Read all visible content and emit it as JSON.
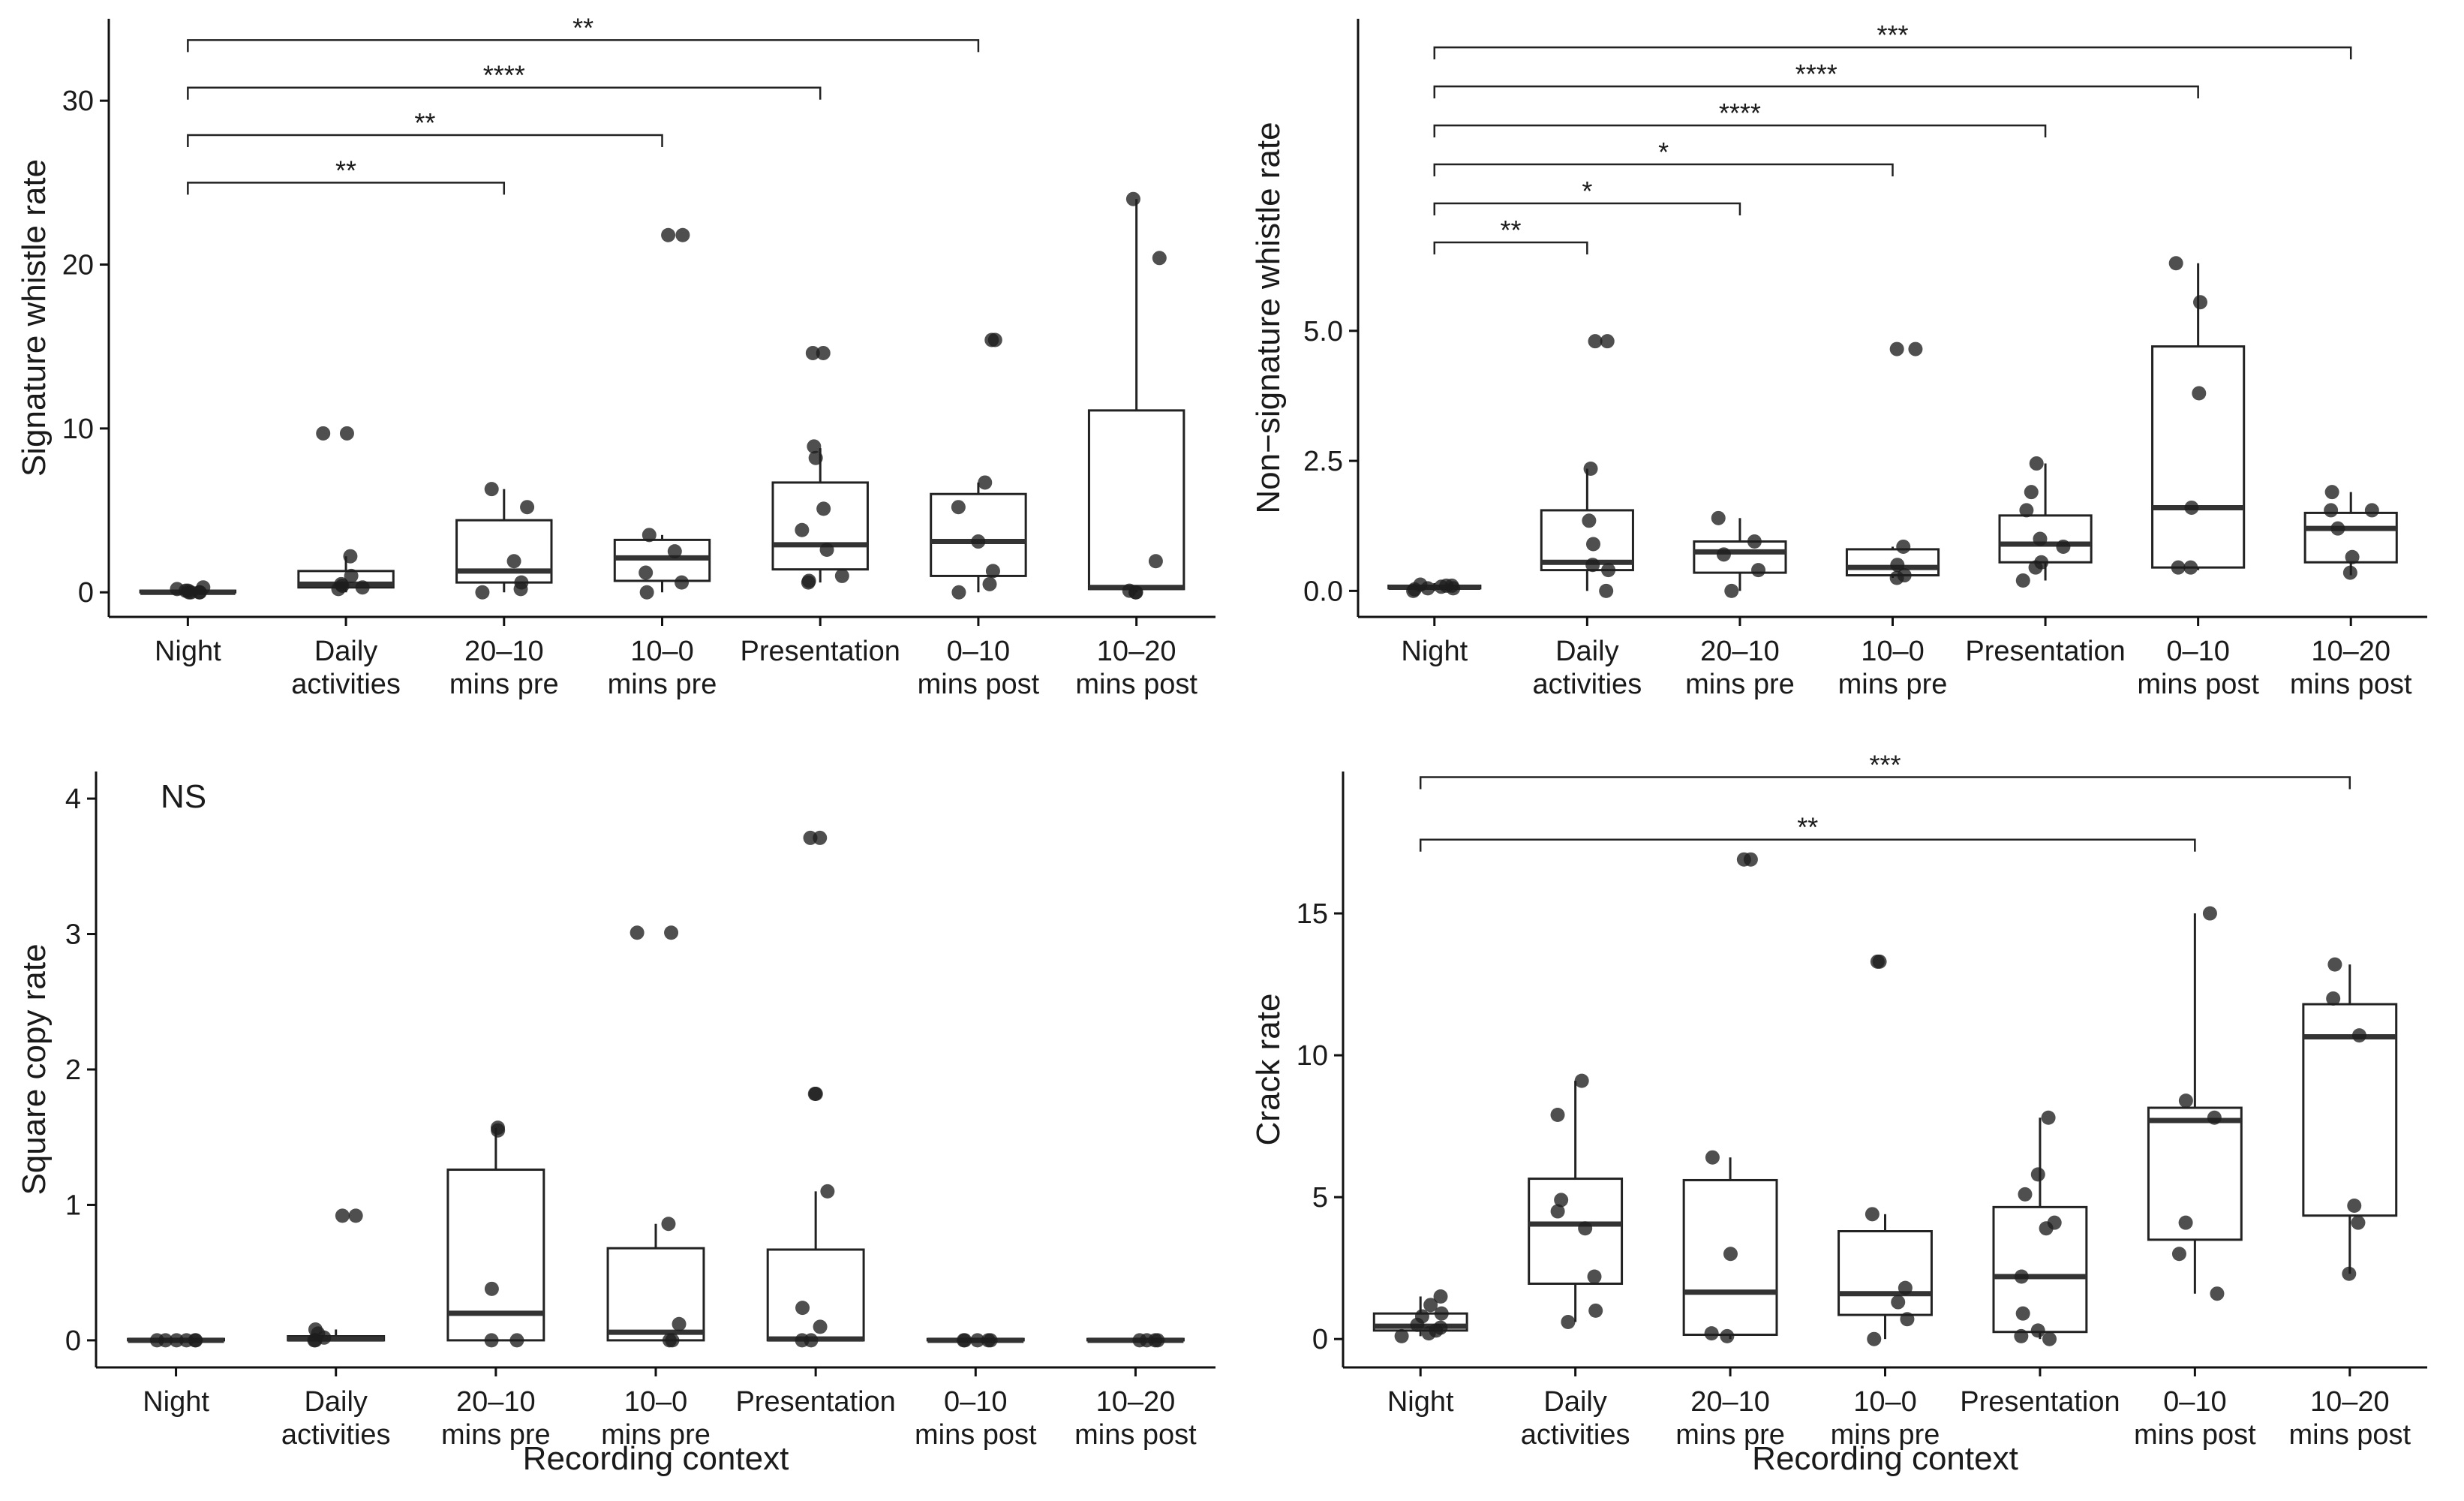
{
  "chart_data": [
    {
      "type": "box",
      "ylabel": "Signature whistle rate",
      "xlabel": "",
      "categories": [
        "Night",
        "Daily\nactivities",
        "20–10\nmins pre",
        "10–0\nmins pre",
        "Presentation",
        "0–10\nmins post",
        "10–20\nmins post"
      ],
      "ylim": [
        -1.5,
        35
      ],
      "yticks": [
        0,
        10,
        20,
        30
      ],
      "boxes": [
        {
          "q1": 0.0,
          "median": 0.0,
          "q3": 0.1,
          "whisker_low": 0.0,
          "whisker_high": 0.3
        },
        {
          "q1": 0.3,
          "median": 0.5,
          "q3": 1.3,
          "whisker_low": 0.0,
          "whisker_high": 2.2
        },
        {
          "q1": 0.6,
          "median": 1.3,
          "q3": 4.4,
          "whisker_low": 0.0,
          "whisker_high": 6.3
        },
        {
          "q1": 0.7,
          "median": 2.1,
          "q3": 3.2,
          "whisker_low": 0.0,
          "whisker_high": 3.5
        },
        {
          "q1": 1.4,
          "median": 2.9,
          "q3": 6.7,
          "whisker_low": 0.6,
          "whisker_high": 8.8
        },
        {
          "q1": 1.0,
          "median": 3.1,
          "q3": 6.0,
          "whisker_low": 0.0,
          "whisker_high": 6.7
        },
        {
          "q1": 0.2,
          "median": 0.3,
          "q3": 11.1,
          "whisker_low": 0.0,
          "whisker_high": 24.0
        }
      ],
      "points": [
        [
          0.0,
          0.0,
          0.1,
          0.2,
          0.3,
          0.0,
          0.1,
          0.0
        ],
        [
          9.7,
          9.7,
          2.2,
          1.0,
          0.5,
          0.3,
          0.2,
          0.4
        ],
        [
          6.3,
          5.2,
          1.9,
          0.6,
          0.2,
          0.0
        ],
        [
          21.8,
          21.8,
          3.5,
          2.5,
          1.2,
          0.6,
          0.0
        ],
        [
          14.6,
          14.6,
          8.9,
          8.2,
          5.1,
          3.8,
          2.6,
          1.0,
          0.6,
          0.7
        ],
        [
          15.4,
          15.4,
          6.7,
          5.2,
          3.1,
          1.3,
          0.5,
          0.0
        ],
        [
          24.0,
          20.4,
          1.9,
          0.0,
          0.1,
          0.0
        ]
      ],
      "significance": [
        {
          "from": 0,
          "to": 2,
          "y": 25.0,
          "label": "**"
        },
        {
          "from": 0,
          "to": 3,
          "y": 27.9,
          "label": "**"
        },
        {
          "from": 0,
          "to": 4,
          "y": 30.8,
          "label": "****"
        },
        {
          "from": 0,
          "to": 5,
          "y": 33.7,
          "label": "**"
        }
      ],
      "annotation": ""
    },
    {
      "type": "box",
      "ylabel": "Non−signature whistle rate",
      "xlabel": "",
      "categories": [
        "Night",
        "Daily\nactivities",
        "20–10\nmins pre",
        "10–0\nmins pre",
        "Presentation",
        "0–10\nmins post",
        "10–20\nmins post"
      ],
      "ylim": [
        -0.5,
        11
      ],
      "yticks": [
        0.0,
        2.5,
        5.0
      ],
      "ytick_labels": [
        "0.0",
        "2.5",
        "5.0"
      ],
      "boxes": [
        {
          "q1": 0.05,
          "median": 0.07,
          "q3": 0.1,
          "whisker_low": 0.0,
          "whisker_high": 0.15
        },
        {
          "q1": 0.4,
          "median": 0.55,
          "q3": 1.55,
          "whisker_low": 0.0,
          "whisker_high": 2.35
        },
        {
          "q1": 0.35,
          "median": 0.75,
          "q3": 0.95,
          "whisker_low": 0.0,
          "whisker_high": 1.4
        },
        {
          "q1": 0.3,
          "median": 0.45,
          "q3": 0.8,
          "whisker_low": 0.25,
          "whisker_high": 0.85
        },
        {
          "q1": 0.55,
          "median": 0.9,
          "q3": 1.45,
          "whisker_low": 0.2,
          "whisker_high": 2.45
        },
        {
          "q1": 0.45,
          "median": 1.6,
          "q3": 4.7,
          "whisker_low": 0.4,
          "whisker_high": 6.3
        },
        {
          "q1": 0.55,
          "median": 1.2,
          "q3": 1.5,
          "whisker_low": 0.3,
          "whisker_high": 1.9
        }
      ],
      "points": [
        [
          0.0,
          0.05,
          0.1,
          0.12,
          0.05,
          0.08,
          0.1,
          0.03
        ],
        [
          4.8,
          4.8,
          2.35,
          1.35,
          0.9,
          0.5,
          0.4,
          0.0
        ],
        [
          1.4,
          0.95,
          0.4,
          0.0,
          0.7
        ],
        [
          4.65,
          4.65,
          0.85,
          0.5,
          0.3,
          0.25
        ],
        [
          2.45,
          1.9,
          1.55,
          1.0,
          0.85,
          0.55,
          0.45,
          0.2
        ],
        [
          6.3,
          5.55,
          3.8,
          1.6,
          0.45,
          0.45
        ],
        [
          1.9,
          1.55,
          1.55,
          1.2,
          0.65,
          0.35
        ]
      ],
      "significance": [
        {
          "from": 0,
          "to": 1,
          "y": 6.7,
          "label": "**"
        },
        {
          "from": 0,
          "to": 2,
          "y": 7.45,
          "label": "*"
        },
        {
          "from": 0,
          "to": 3,
          "y": 8.2,
          "label": "*"
        },
        {
          "from": 0,
          "to": 4,
          "y": 8.95,
          "label": "****"
        },
        {
          "from": 0,
          "to": 5,
          "y": 9.7,
          "label": "****"
        },
        {
          "from": 0,
          "to": 6,
          "y": 10.45,
          "label": "***"
        }
      ],
      "annotation": ""
    },
    {
      "type": "box",
      "ylabel": "Square copy rate",
      "xlabel": "Recording context",
      "categories": [
        "Night",
        "Daily\nactivities",
        "20–10\nmins pre",
        "10–0\nmins pre",
        "Presentation",
        "0–10\nmins post",
        "10–20\nmins post"
      ],
      "ylim": [
        -0.2,
        4.2
      ],
      "yticks": [
        0,
        1,
        2,
        3,
        4
      ],
      "boxes": [
        {
          "q1": 0.0,
          "median": 0.0,
          "q3": 0.01,
          "whisker_low": 0.0,
          "whisker_high": 0.01
        },
        {
          "q1": 0.0,
          "median": 0.01,
          "q3": 0.03,
          "whisker_low": 0.0,
          "whisker_high": 0.08
        },
        {
          "q1": 0.0,
          "median": 0.2,
          "q3": 1.26,
          "whisker_low": 0.0,
          "whisker_high": 1.57
        },
        {
          "q1": 0.0,
          "median": 0.06,
          "q3": 0.68,
          "whisker_low": 0.0,
          "whisker_high": 0.86
        },
        {
          "q1": 0.0,
          "median": 0.01,
          "q3": 0.67,
          "whisker_low": 0.0,
          "whisker_high": 1.1
        },
        {
          "q1": 0.0,
          "median": 0.0,
          "q3": 0.01,
          "whisker_low": 0.0,
          "whisker_high": 0.01
        },
        {
          "q1": 0.0,
          "median": 0.0,
          "q3": 0.01,
          "whisker_low": 0.0,
          "whisker_high": 0.01
        }
      ],
      "points": [
        [
          0.0,
          0.0,
          0.0,
          0.0,
          0.0,
          0.0
        ],
        [
          0.92,
          0.92,
          0.08,
          0.05,
          0.0,
          0.0,
          0.02
        ],
        [
          1.57,
          1.55,
          0.38,
          0.0,
          0.0
        ],
        [
          3.01,
          3.01,
          0.86,
          0.12,
          0.0,
          0.0
        ],
        [
          3.71,
          3.71,
          1.82,
          1.82,
          1.1,
          0.24,
          0.1,
          0.0,
          0.0
        ],
        [
          0.0,
          0.0,
          0.0,
          0.0,
          0.0
        ],
        [
          0.0,
          0.0,
          0.0,
          0.0
        ]
      ],
      "significance": [],
      "annotation": "NS"
    },
    {
      "type": "box",
      "ylabel": "Crack rate",
      "xlabel": "Recording context",
      "categories": [
        "Night",
        "Daily\nactivities",
        "20–10\nmins pre",
        "10–0\nmins pre",
        "Presentation",
        "0–10\nmins post",
        "10–20\nmins post"
      ],
      "ylim": [
        -1,
        20
      ],
      "yticks": [
        0,
        5,
        10,
        15
      ],
      "boxes": [
        {
          "q1": 0.3,
          "median": 0.45,
          "q3": 0.9,
          "whisker_low": 0.1,
          "whisker_high": 1.5
        },
        {
          "q1": 1.95,
          "median": 4.05,
          "q3": 5.65,
          "whisker_low": 0.6,
          "whisker_high": 9.1
        },
        {
          "q1": 0.15,
          "median": 1.65,
          "q3": 5.6,
          "whisker_low": 0.0,
          "whisker_high": 6.4
        },
        {
          "q1": 0.85,
          "median": 1.6,
          "q3": 3.8,
          "whisker_low": 0.0,
          "whisker_high": 4.4
        },
        {
          "q1": 0.25,
          "median": 2.2,
          "q3": 4.65,
          "whisker_low": 0.0,
          "whisker_high": 7.8
        },
        {
          "q1": 3.5,
          "median": 7.7,
          "q3": 8.15,
          "whisker_low": 1.6,
          "whisker_high": 15.0
        },
        {
          "q1": 4.35,
          "median": 10.65,
          "q3": 11.8,
          "whisker_low": 2.3,
          "whisker_high": 13.2
        }
      ],
      "points": [
        [
          1.5,
          1.2,
          0.8,
          0.5,
          0.3,
          0.2,
          0.1,
          0.9,
          0.4
        ],
        [
          9.1,
          7.9,
          4.9,
          4.5,
          3.9,
          2.2,
          1.0,
          0.6
        ],
        [
          16.9,
          16.9,
          6.4,
          3.0,
          0.1,
          0.2
        ],
        [
          13.3,
          13.3,
          4.4,
          1.8,
          1.3,
          0.7,
          0.0
        ],
        [
          7.8,
          5.8,
          5.1,
          4.1,
          3.9,
          2.2,
          0.9,
          0.3,
          0.1,
          0.0
        ],
        [
          15.0,
          8.4,
          7.8,
          4.1,
          3.0,
          1.6
        ],
        [
          13.2,
          12.0,
          10.7,
          4.7,
          4.1,
          2.3
        ]
      ],
      "significance": [
        {
          "from": 0,
          "to": 5,
          "y": 17.6,
          "label": "**"
        },
        {
          "from": 0,
          "to": 6,
          "y": 19.8,
          "label": "***"
        }
      ],
      "annotation": ""
    }
  ]
}
